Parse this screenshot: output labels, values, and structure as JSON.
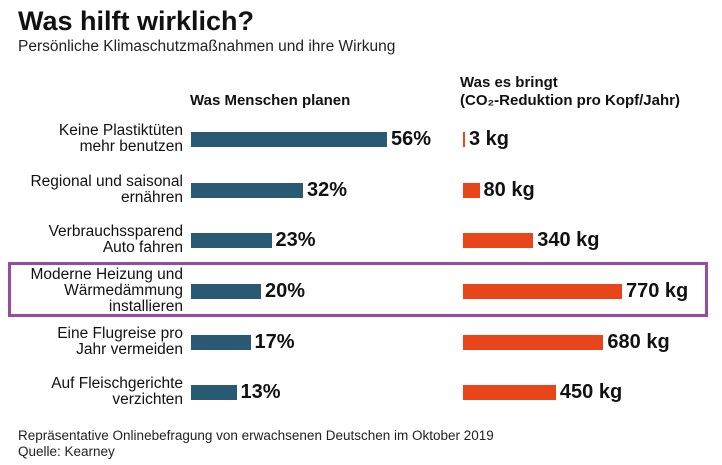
{
  "chart_data": {
    "type": "bar",
    "title": "Was hilft wirklich?",
    "subtitle": "Persönliche Klimaschutzmaßnahmen und ihre Wirkung",
    "left_header": "Was Menschen planen",
    "right_header_line1": "Was es bringt",
    "right_header_line2": "(CO₂-Reduktion pro Kopf/Jahr)",
    "categories": [
      [
        "Keine Plastiktüten",
        "mehr benutzen"
      ],
      [
        "Regional und saisonal",
        "ernähren"
      ],
      [
        "Verbrauchssparend",
        "Auto fahren"
      ],
      [
        "Moderne Heizung und",
        "Wärmedämmung",
        "installieren"
      ],
      [
        "Eine Flugreise pro",
        "Jahr vermeiden"
      ],
      [
        "Auf Fleischgerichte",
        "verzichten"
      ]
    ],
    "series": [
      {
        "name": "Was Menschen planen",
        "unit": "%",
        "values": [
          56,
          32,
          23,
          20,
          17,
          13
        ],
        "labels": [
          "56%",
          "32%",
          "23%",
          "20%",
          "17%",
          "13%"
        ],
        "color": "#2a5a73"
      },
      {
        "name": "CO₂-Reduktion pro Kopf/Jahr",
        "unit": "kg",
        "values": [
          3,
          80,
          340,
          770,
          680,
          450
        ],
        "labels": [
          "3 kg",
          "80 kg",
          "340 kg",
          "770 kg",
          "680 kg",
          "450 kg"
        ],
        "color": "#e8461a"
      }
    ],
    "highlighted_index": 3,
    "highlight_color": "#9b4aa3",
    "footer": [
      "Repräsentative Onlinebefragung von erwachsenen Deutschen im Oktober 2019",
      "Quelle: Kearney"
    ]
  }
}
